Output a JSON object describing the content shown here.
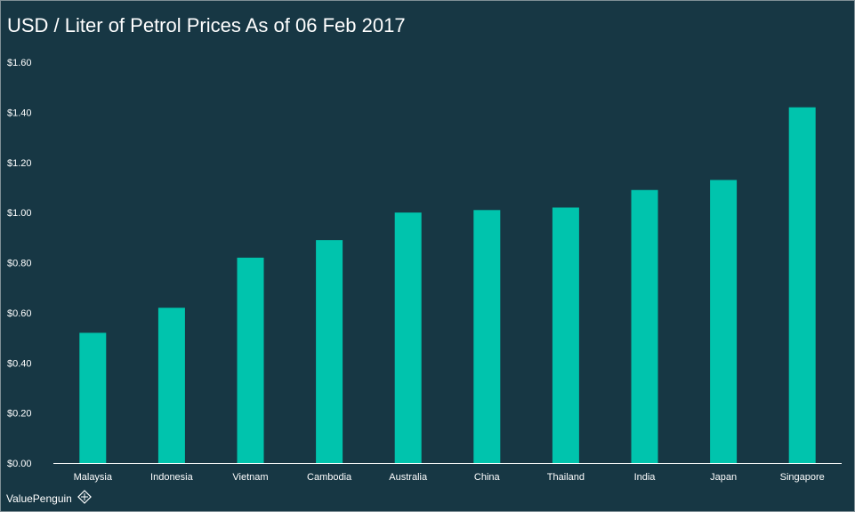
{
  "chart_data": {
    "type": "bar",
    "title": "USD / Liter of Petrol Prices As of 06 Feb 2017",
    "xlabel": "",
    "ylabel": "",
    "categories": [
      "Malaysia",
      "Indonesia",
      "Vietnam",
      "Cambodia",
      "Australia",
      "China",
      "Thailand",
      "India",
      "Japan",
      "Singapore"
    ],
    "values": [
      0.52,
      0.62,
      0.82,
      0.89,
      1.0,
      1.01,
      1.02,
      1.09,
      1.13,
      1.42
    ],
    "ylim": [
      0,
      1.6
    ],
    "yticks": [
      0,
      0.2,
      0.4,
      0.6,
      0.8,
      1.0,
      1.2,
      1.4,
      1.6
    ],
    "ytick_labels": [
      "$0.00",
      "$0.20",
      "$0.40",
      "$0.60",
      "$0.80",
      "$1.00",
      "$1.20",
      "$1.40",
      "$1.60"
    ],
    "grid": false,
    "legend": "none"
  },
  "brand": {
    "name": "ValuePenguin",
    "icon": "penguin-logo-icon"
  },
  "colors": {
    "background": "#173744",
    "bar": "#00c4ad",
    "text": "#ffffff",
    "axis": "#ffffff"
  }
}
